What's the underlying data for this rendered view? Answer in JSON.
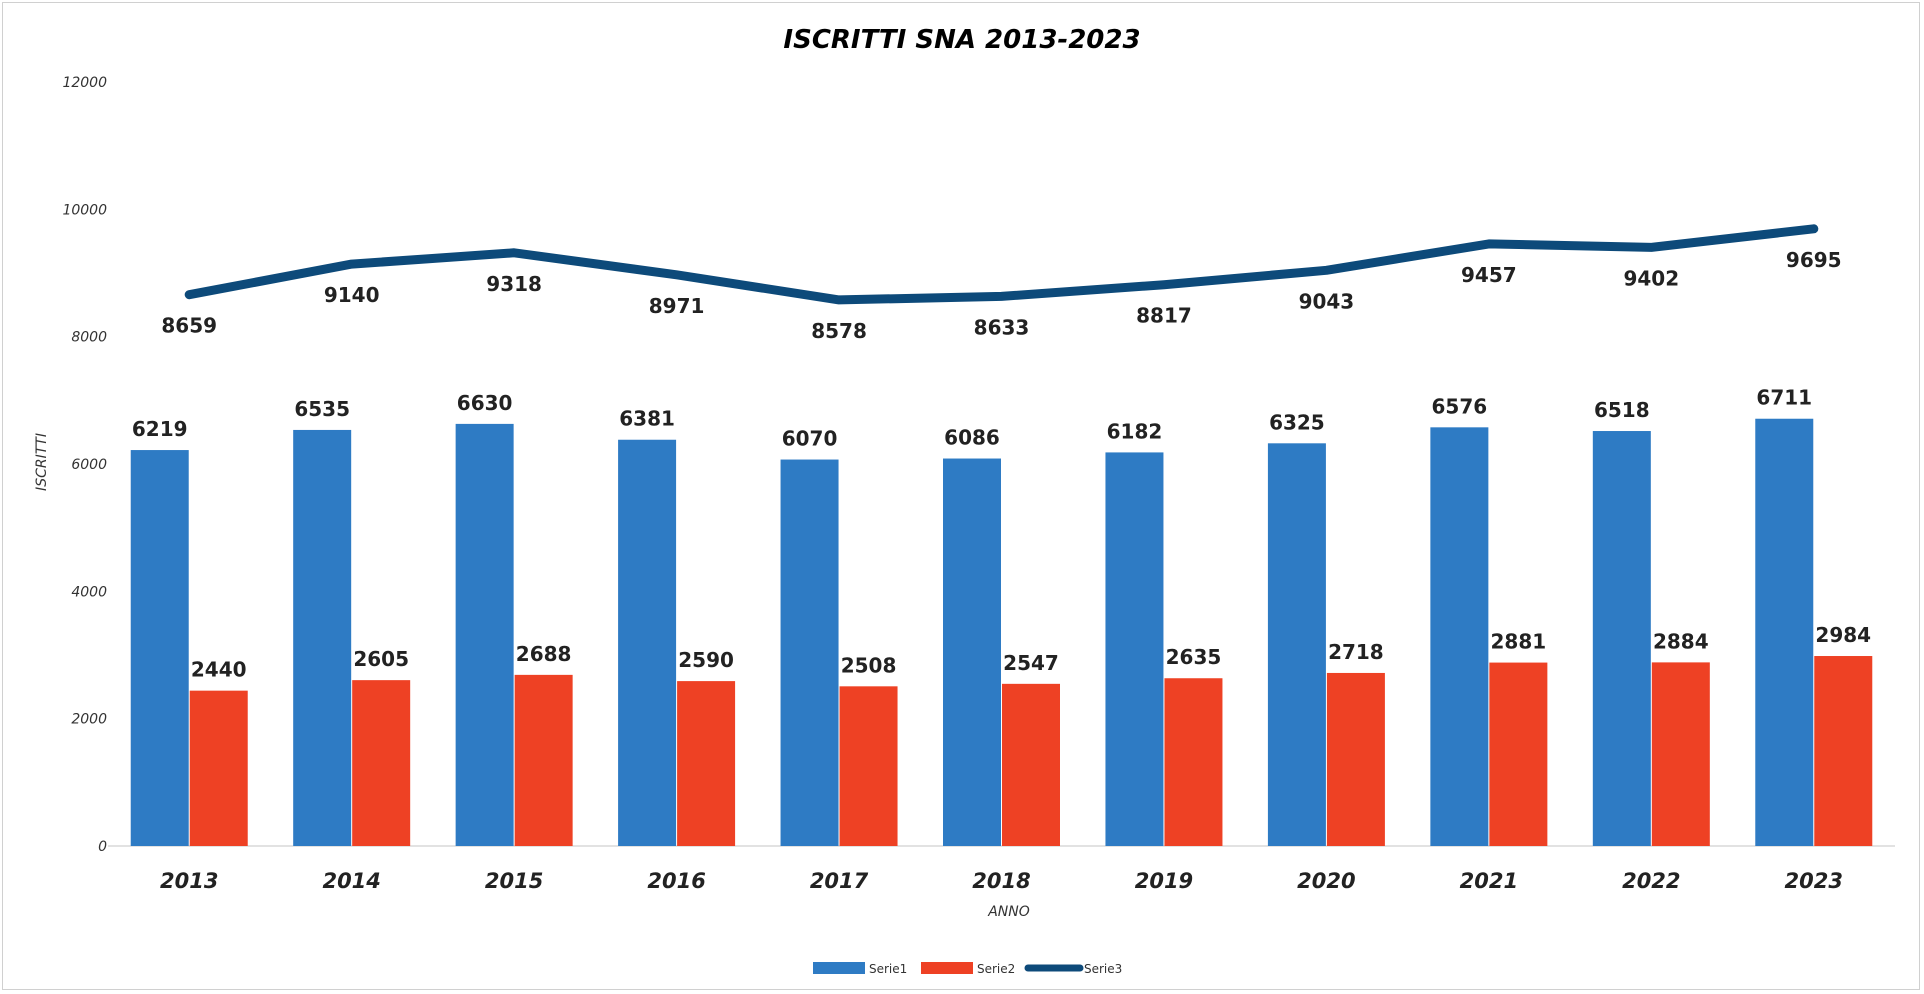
{
  "chart_data": {
    "type": "bar",
    "title": "ISCRITTI SNA 2013-2023",
    "xlabel": "ANNO",
    "ylabel": "ISCRITTI",
    "ylim": [
      0,
      12000
    ],
    "yticks": [
      "0",
      "2000",
      "4000",
      "6000",
      "8000",
      "10000",
      "12000"
    ],
    "categories": [
      "2013",
      "2014",
      "2015",
      "2016",
      "2017",
      "2018",
      "2019",
      "2020",
      "2021",
      "2022",
      "2023"
    ],
    "series": [
      {
        "name": "Serie1",
        "type": "bar",
        "color": "#2e7bc4",
        "values": [
          6219,
          6535,
          6630,
          6381,
          6070,
          6086,
          6182,
          6325,
          6576,
          6518,
          6711
        ]
      },
      {
        "name": "Serie2",
        "type": "bar",
        "color": "#ee4124",
        "values": [
          2440,
          2605,
          2688,
          2590,
          2508,
          2547,
          2635,
          2718,
          2881,
          2884,
          2984
        ]
      },
      {
        "name": "Serie3",
        "type": "line",
        "color": "#0d4a7a",
        "values": [
          8659,
          9140,
          9318,
          8971,
          8578,
          8633,
          8817,
          9043,
          9457,
          9402,
          9695
        ]
      }
    ],
    "grid": false,
    "legend_position": "bottom-center"
  }
}
